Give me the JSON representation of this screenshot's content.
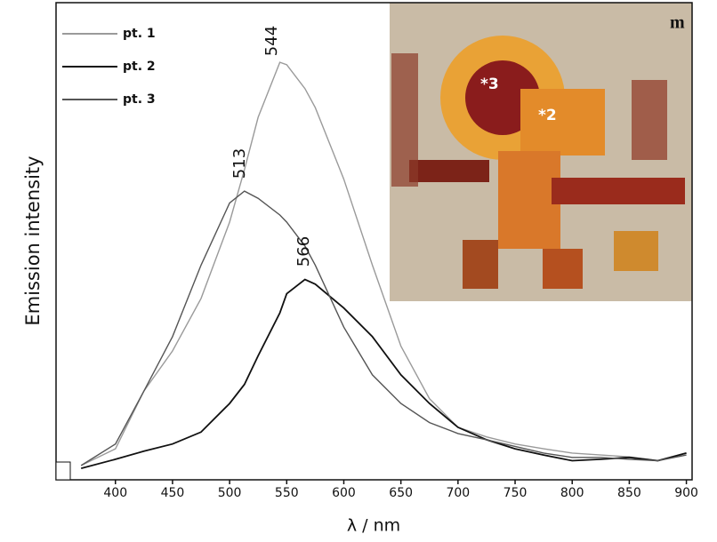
{
  "chart_data": {
    "type": "line",
    "xlabel": "λ / nm",
    "ylabel": "Emission intensity",
    "x": [
      370,
      400,
      425,
      450,
      475,
      500,
      513,
      525,
      544,
      550,
      566,
      575,
      600,
      625,
      650,
      675,
      700,
      725,
      750,
      775,
      800,
      825,
      850,
      875,
      900
    ],
    "series": [
      {
        "name": "pt. 1",
        "color": "#9a9a9a",
        "values": [
          3,
          6.5,
          18.6,
          27,
          38,
          54,
          65,
          76,
          87.5,
          87,
          82,
          78,
          63,
          45,
          28,
          17,
          11,
          9,
          7.5,
          6.5,
          5.6,
          5.2,
          4.8,
          4,
          5.6
        ]
      },
      {
        "name": "pt. 2",
        "color": "#111111",
        "values": [
          2.4,
          4.3,
          6,
          7.5,
          10,
          16,
          20,
          26,
          35,
          39,
          42,
          41,
          36,
          30,
          22,
          16,
          11,
          8.4,
          6.5,
          5.2,
          4,
          4.3,
          4.7,
          4,
          5.6
        ]
      },
      {
        "name": "pt. 3",
        "color": "#555555",
        "values": [
          3,
          7.5,
          18.6,
          30,
          45,
          58,
          60.5,
          59,
          55.5,
          54,
          49,
          45,
          32,
          22,
          16,
          12,
          9.7,
          8.4,
          7,
          5.6,
          4.7,
          4.7,
          4.3,
          4,
          5.2
        ]
      }
    ],
    "peak_labels": [
      "544",
      "513",
      "566"
    ],
    "xlim": [
      348,
      905
    ],
    "xticks": [
      400,
      450,
      500,
      550,
      600,
      650,
      700,
      750,
      800,
      850,
      900
    ],
    "ylim": [
      0,
      100
    ],
    "legend": "top-left",
    "inset": {
      "panel_label": "m",
      "point_labels": [
        "*3",
        "*2"
      ]
    }
  }
}
